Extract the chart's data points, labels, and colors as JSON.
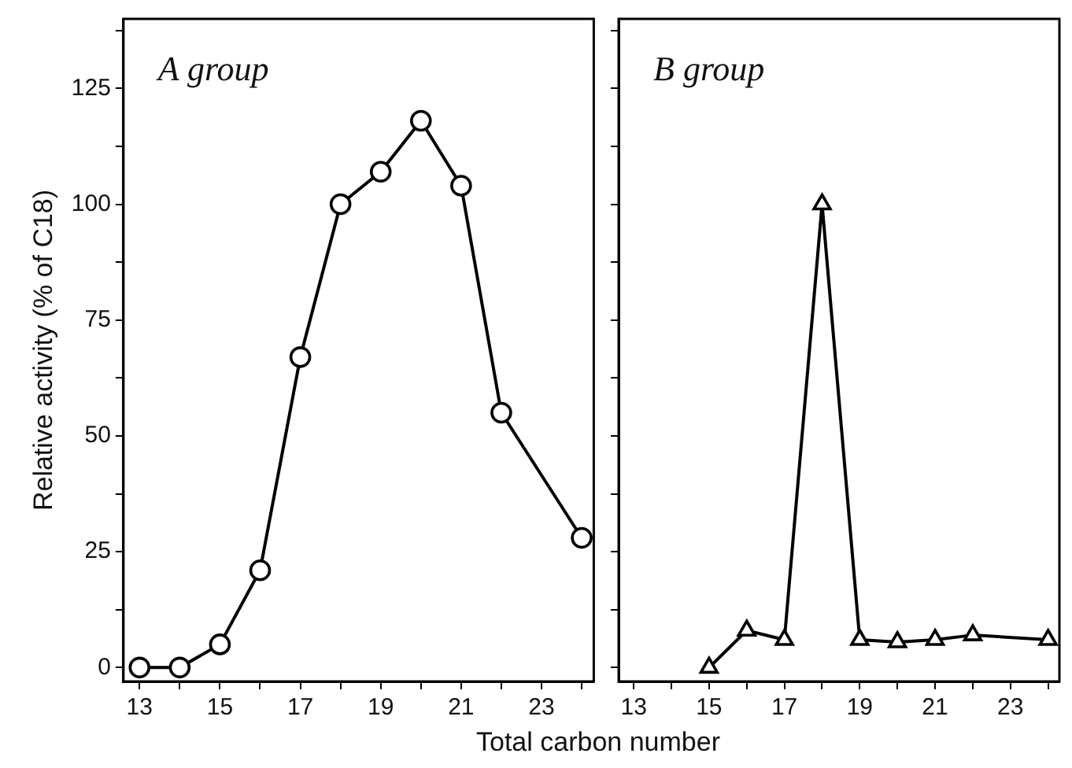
{
  "chart_data": [
    {
      "type": "line",
      "title": "A group",
      "xlabel": "Total carbon number",
      "ylabel": "Relative activity (% of C18)",
      "x": [
        13,
        14,
        15,
        16,
        17,
        18,
        19,
        20,
        21,
        22,
        24
      ],
      "series": [
        {
          "color": "#000000",
          "values": [
            0,
            0,
            5,
            21,
            67,
            100,
            107,
            118,
            104,
            55,
            28
          ]
        }
      ],
      "xlim": [
        12.6,
        24.3
      ],
      "xticks": [
        13,
        {
          "value": 14,
          "label": null
        },
        15,
        {
          "value": 16,
          "label": null
        },
        17,
        {
          "value": 18,
          "label": null
        },
        19,
        {
          "value": 20,
          "label": null
        },
        21,
        {
          "value": 22,
          "label": null
        },
        23,
        {
          "value": 24,
          "label": null
        }
      ],
      "ylim": [
        -3,
        140
      ],
      "yticks": [
        0,
        {
          "value": 12.5,
          "label": null
        },
        25,
        {
          "value": 37.5,
          "label": null
        },
        50,
        {
          "value": 62.5,
          "label": null
        },
        75,
        {
          "value": 87.5,
          "label": null
        },
        100,
        {
          "value": 112.5,
          "label": null
        },
        125,
        {
          "value": 137.5,
          "label": null
        }
      ],
      "marker": "circle",
      "line_style": "solid",
      "grid": false,
      "legend": false
    },
    {
      "type": "line",
      "title": "B group",
      "x": [
        15,
        16,
        17,
        18,
        19,
        20,
        21,
        22,
        24
      ],
      "series": [
        {
          "color": "#000000",
          "values": [
            0,
            8,
            6,
            100,
            6,
            5.5,
            6,
            7,
            6
          ]
        }
      ],
      "xlim": [
        12.6,
        24.3
      ],
      "xticks": [
        13,
        {
          "value": 14,
          "label": null
        },
        15,
        {
          "value": 16,
          "label": null
        },
        17,
        {
          "value": 18,
          "label": null
        },
        19,
        {
          "value": 20,
          "label": null
        },
        21,
        {
          "value": 22,
          "label": null
        },
        23,
        {
          "value": 24,
          "label": null
        }
      ],
      "ylim": [
        -3,
        140
      ],
      "yticks": [
        0,
        {
          "value": 12.5,
          "label": null
        },
        25,
        {
          "value": 37.5,
          "label": null
        },
        50,
        {
          "value": 62.5,
          "label": null
        },
        75,
        {
          "value": 87.5,
          "label": null
        },
        100,
        {
          "value": 112.5,
          "label": null
        },
        125,
        {
          "value": 137.5,
          "label": null
        }
      ],
      "tick_labels": "x",
      "marker": "triangle",
      "line_style": "solid",
      "grid": false,
      "legend": false
    }
  ]
}
